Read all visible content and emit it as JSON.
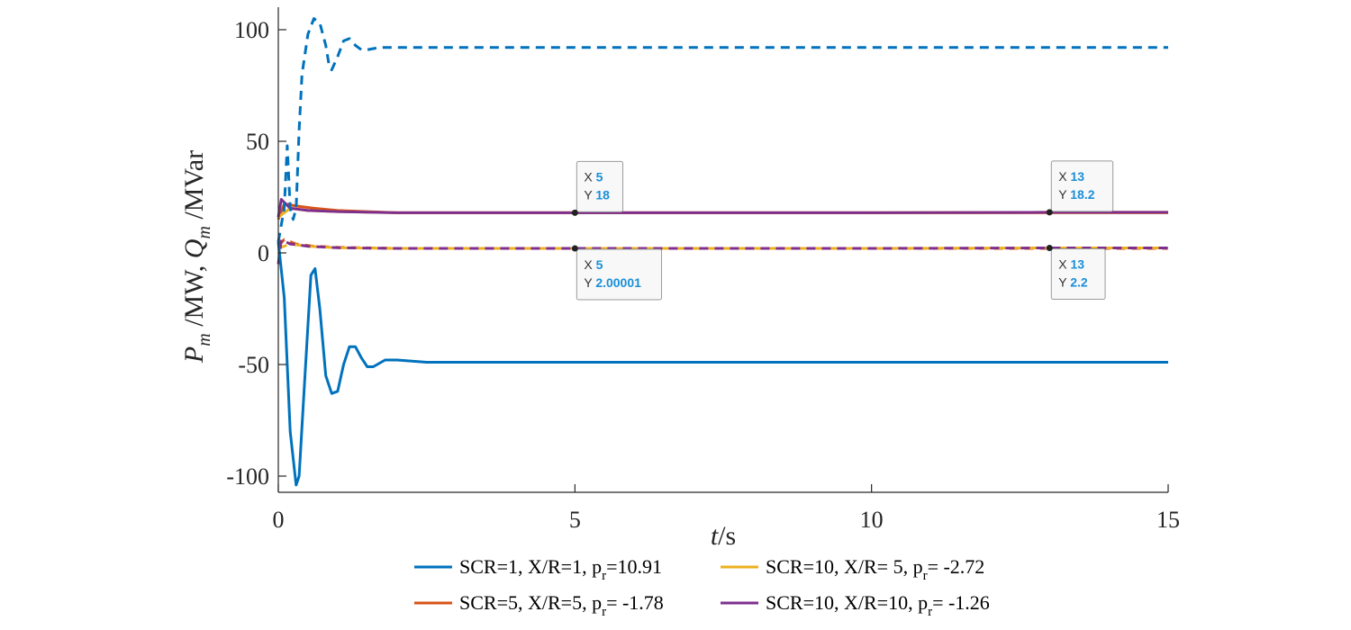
{
  "chart_data": {
    "type": "line",
    "xlabel": {
      "main": "t",
      "unit": "/s"
    },
    "ylabel": {
      "p": "P",
      "p_sub": "m",
      "mid": " /MW, ",
      "q": "Q",
      "q_sub": "m",
      "unit": " /MVar"
    },
    "xlim": [
      0,
      15
    ],
    "ylim": [
      -110,
      110
    ],
    "x_ticks": [
      0,
      5,
      10,
      15
    ],
    "y_ticks": [
      -100,
      -50,
      0,
      50,
      100
    ],
    "grid": false,
    "legend_position": "bottom",
    "series": [
      {
        "name": "SCR=1, X/R=1, p_r=10.91",
        "legend_parts": [
          "SCR=1, X/R=1, p",
          "r",
          "=10.91"
        ],
        "color": "#0072BD",
        "P": [
          [
            0,
            5
          ],
          [
            0.1,
            -20
          ],
          [
            0.2,
            -80
          ],
          [
            0.3,
            -104
          ],
          [
            0.35,
            -100
          ],
          [
            0.45,
            -55
          ],
          [
            0.55,
            -10
          ],
          [
            0.62,
            -7
          ],
          [
            0.7,
            -25
          ],
          [
            0.8,
            -55
          ],
          [
            0.9,
            -63
          ],
          [
            1.0,
            -62
          ],
          [
            1.1,
            -50
          ],
          [
            1.2,
            -42
          ],
          [
            1.3,
            -42
          ],
          [
            1.4,
            -47
          ],
          [
            1.5,
            -51
          ],
          [
            1.6,
            -51
          ],
          [
            1.8,
            -48
          ],
          [
            2.0,
            -48
          ],
          [
            2.5,
            -49
          ],
          [
            3,
            -49
          ],
          [
            15,
            -49
          ]
        ],
        "Q": [
          [
            0,
            5
          ],
          [
            0.1,
            20
          ],
          [
            0.15,
            48
          ],
          [
            0.2,
            20
          ],
          [
            0.25,
            15
          ],
          [
            0.3,
            20
          ],
          [
            0.35,
            55
          ],
          [
            0.4,
            80
          ],
          [
            0.5,
            98
          ],
          [
            0.6,
            105
          ],
          [
            0.7,
            103
          ],
          [
            0.8,
            93
          ],
          [
            0.85,
            85
          ],
          [
            0.9,
            82
          ],
          [
            1.0,
            88
          ],
          [
            1.1,
            95
          ],
          [
            1.2,
            96
          ],
          [
            1.3,
            93
          ],
          [
            1.4,
            91
          ],
          [
            1.5,
            91
          ],
          [
            1.7,
            92
          ],
          [
            2.0,
            92
          ],
          [
            3,
            92
          ],
          [
            15,
            92
          ]
        ]
      },
      {
        "name": "SCR=5, X/R=5, p_r= -1.78",
        "legend_parts": [
          "SCR=5, X/R=5, p",
          "r",
          "= -1.78"
        ],
        "color": "#D95319",
        "P": [
          [
            0,
            15
          ],
          [
            0.1,
            22
          ],
          [
            0.3,
            21
          ],
          [
            0.6,
            20
          ],
          [
            1,
            19
          ],
          [
            1.5,
            18.5
          ],
          [
            2,
            18
          ],
          [
            5,
            18
          ],
          [
            10,
            18
          ],
          [
            15,
            18
          ]
        ],
        "Q": [
          [
            0,
            3
          ],
          [
            0.1,
            6
          ],
          [
            0.3,
            4
          ],
          [
            0.6,
            3
          ],
          [
            1,
            2.5
          ],
          [
            2,
            2
          ],
          [
            5,
            2
          ],
          [
            10,
            2
          ],
          [
            15,
            2
          ]
        ]
      },
      {
        "name": "SCR=10, X/R=  5, p_r= -2.72",
        "legend_parts": [
          "SCR=10, X/R=  5, p",
          "r",
          "= -2.72"
        ],
        "color": "#EDB120",
        "P": [
          [
            0,
            16
          ],
          [
            0.2,
            20
          ],
          [
            0.5,
            19
          ],
          [
            1,
            18.5
          ],
          [
            2,
            18
          ],
          [
            5,
            18
          ],
          [
            10,
            18
          ],
          [
            13,
            18.2
          ],
          [
            15,
            18.2
          ]
        ],
        "Q": [
          [
            0,
            2
          ],
          [
            0.2,
            4
          ],
          [
            0.5,
            3
          ],
          [
            1,
            2.3
          ],
          [
            2,
            2
          ],
          [
            5,
            2.00001
          ],
          [
            10,
            2
          ],
          [
            13,
            2.2
          ],
          [
            15,
            2.2
          ]
        ]
      },
      {
        "name": "SCR=10, X/R=10, p_r= -1.26",
        "legend_parts": [
          "SCR=10, X/R=10, p",
          "r",
          "= -1.26"
        ],
        "color": "#7E2F8E",
        "P": [
          [
            0,
            16
          ],
          [
            0.05,
            24
          ],
          [
            0.2,
            20
          ],
          [
            0.5,
            19
          ],
          [
            1,
            18.5
          ],
          [
            2,
            18
          ],
          [
            5,
            18
          ],
          [
            10,
            18
          ],
          [
            13,
            18.2
          ],
          [
            15,
            18.2
          ]
        ],
        "Q": [
          [
            0,
            -5
          ],
          [
            0.05,
            6
          ],
          [
            0.2,
            4
          ],
          [
            0.5,
            3
          ],
          [
            1,
            2.3
          ],
          [
            2,
            2
          ],
          [
            5,
            2
          ],
          [
            10,
            2
          ],
          [
            13,
            2.2
          ],
          [
            15,
            2.2
          ]
        ]
      }
    ],
    "datatips": [
      {
        "x": 5,
        "y": 18,
        "x_label": "X",
        "y_label": "Y",
        "x_text": "5",
        "y_text": "18",
        "placement": "above"
      },
      {
        "x": 13,
        "y": 18.2,
        "x_label": "X",
        "y_label": "Y",
        "x_text": "13",
        "y_text": "18.2",
        "placement": "above"
      },
      {
        "x": 5,
        "y": 2.00001,
        "x_label": "X",
        "y_label": "Y",
        "x_text": "5",
        "y_text": "2.00001",
        "placement": "below"
      },
      {
        "x": 13,
        "y": 2.2,
        "x_label": "X",
        "y_label": "Y",
        "x_text": "13",
        "y_text": "2.2",
        "placement": "below"
      }
    ]
  }
}
